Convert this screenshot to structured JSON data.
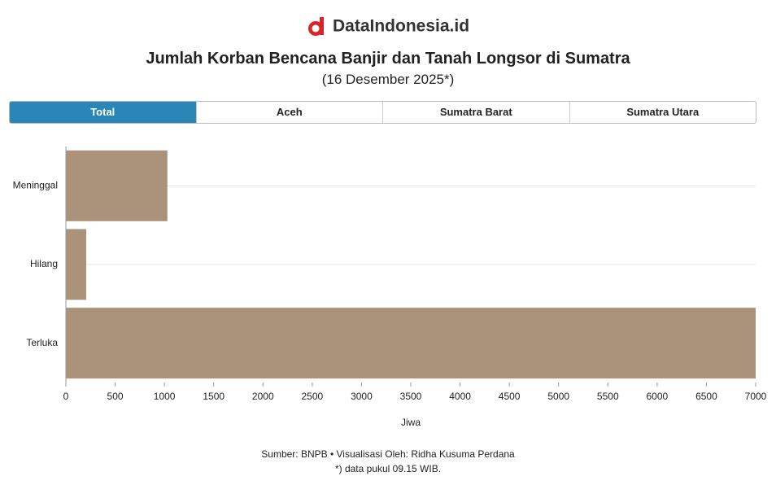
{
  "header": {
    "logo": "DataIndonesia.id"
  },
  "tabs": [
    "Total",
    "Aceh",
    "Sumatra Barat",
    "Sumatra Utara"
  ],
  "chart_data": {
    "type": "bar",
    "orientation": "horizontal",
    "title": "Jumlah Korban Bencana Banjir dan Tanah Longsor di Sumatra",
    "subtitle": "(16 Desember 2025*)",
    "categories": [
      "Meninggal",
      "Hilang",
      "Terluka"
    ],
    "values": [
      1030,
      206,
      7000
    ],
    "color": "#ab927a",
    "xlim": [
      0,
      7000
    ],
    "xticks": [
      0,
      500,
      1000,
      1500,
      2000,
      2500,
      3000,
      3500,
      4000,
      4500,
      5000,
      5500,
      6000,
      6500,
      7000
    ],
    "xlabel": "Jiwa",
    "grid": true
  },
  "footer": [
    "Sumber: BNPB • Visualisasi Oleh: Ridha Kusuma Perdana",
    "*) data pukul 09.15 WIB."
  ]
}
